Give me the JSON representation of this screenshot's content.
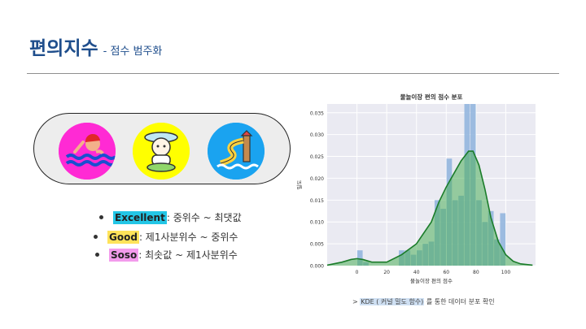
{
  "slide": {
    "title": "편의지수",
    "subtitle": "-  점수 범주화"
  },
  "icons": [
    {
      "name": "swimmer-icon",
      "bg": "#ff2ad4"
    },
    {
      "name": "snowman-icon",
      "bg": "#ffff00"
    },
    {
      "name": "water-slide-icon",
      "bg": "#1aa3f0"
    }
  ],
  "legend": [
    {
      "tag": "Excellent",
      "text": ": 중위수 ~ 최댓값"
    },
    {
      "tag": "Good",
      "text": ": 제1사분위수 ~ 중위수"
    },
    {
      "tag": "Soso",
      "text": ": 최솟값 ~ 제1사분위수"
    }
  ],
  "chart_data": {
    "type": "bar",
    "title": "물놀이장 편의 점수 분포",
    "xlabel": "물놀이장 편의 점수",
    "ylabel": "밀도",
    "xlim": [
      -20,
      120
    ],
    "ylim": [
      0,
      0.037
    ],
    "xticks": [
      0,
      20,
      40,
      60,
      80,
      100
    ],
    "yticks": [
      0.0,
      0.005,
      0.01,
      0.015,
      0.02,
      0.025,
      0.03,
      0.035
    ],
    "ytick_labels": [
      "0.000",
      "0.005",
      "0.010",
      "0.015",
      "0.020",
      "0.025",
      "0.030",
      "0.035"
    ],
    "bin_width": 4,
    "bins": [
      {
        "x": 0,
        "v": 0.0035
      },
      {
        "x": 4,
        "v": 0.0008
      },
      {
        "x": 28,
        "v": 0.0035
      },
      {
        "x": 32,
        "v": 0.0035
      },
      {
        "x": 36,
        "v": 0.0025
      },
      {
        "x": 40,
        "v": 0.0035
      },
      {
        "x": 44,
        "v": 0.005
      },
      {
        "x": 48,
        "v": 0.0055
      },
      {
        "x": 52,
        "v": 0.015
      },
      {
        "x": 56,
        "v": 0.013
      },
      {
        "x": 60,
        "v": 0.0245
      },
      {
        "x": 64,
        "v": 0.015
      },
      {
        "x": 68,
        "v": 0.016
      },
      {
        "x": 72,
        "v": 0.0375
      },
      {
        "x": 76,
        "v": 0.0375
      },
      {
        "x": 80,
        "v": 0.015
      },
      {
        "x": 84,
        "v": 0.01
      },
      {
        "x": 88,
        "v": 0.0125
      },
      {
        "x": 92,
        "v": 0.006
      },
      {
        "x": 96,
        "v": 0.012
      }
    ],
    "kde": [
      [
        -20,
        0.0001
      ],
      [
        -10,
        0.0008
      ],
      [
        -4,
        0.0014
      ],
      [
        0,
        0.0016
      ],
      [
        4,
        0.0014
      ],
      [
        10,
        0.0008
      ],
      [
        20,
        0.0008
      ],
      [
        30,
        0.0025
      ],
      [
        40,
        0.005
      ],
      [
        50,
        0.01
      ],
      [
        55,
        0.0145
      ],
      [
        60,
        0.018
      ],
      [
        65,
        0.021
      ],
      [
        70,
        0.024
      ],
      [
        75,
        0.0262
      ],
      [
        78,
        0.0262
      ],
      [
        82,
        0.023
      ],
      [
        86,
        0.0175
      ],
      [
        90,
        0.011
      ],
      [
        95,
        0.0055
      ],
      [
        100,
        0.0025
      ],
      [
        105,
        0.001
      ],
      [
        110,
        0.0004
      ],
      [
        118,
        0.0001
      ]
    ],
    "colors": {
      "bar_blue": "#93b6de",
      "bar_green": "#7cc387",
      "kde_line": "#1b7c2a",
      "kde_fill": "#4caf5a",
      "plot_bg": "#eaeaf2"
    }
  },
  "caption": {
    "prefix": "> ",
    "highlight": "KDE ( 커널 밀도 함수)",
    "suffix": " 를 통한 데이터 분포 확인"
  }
}
